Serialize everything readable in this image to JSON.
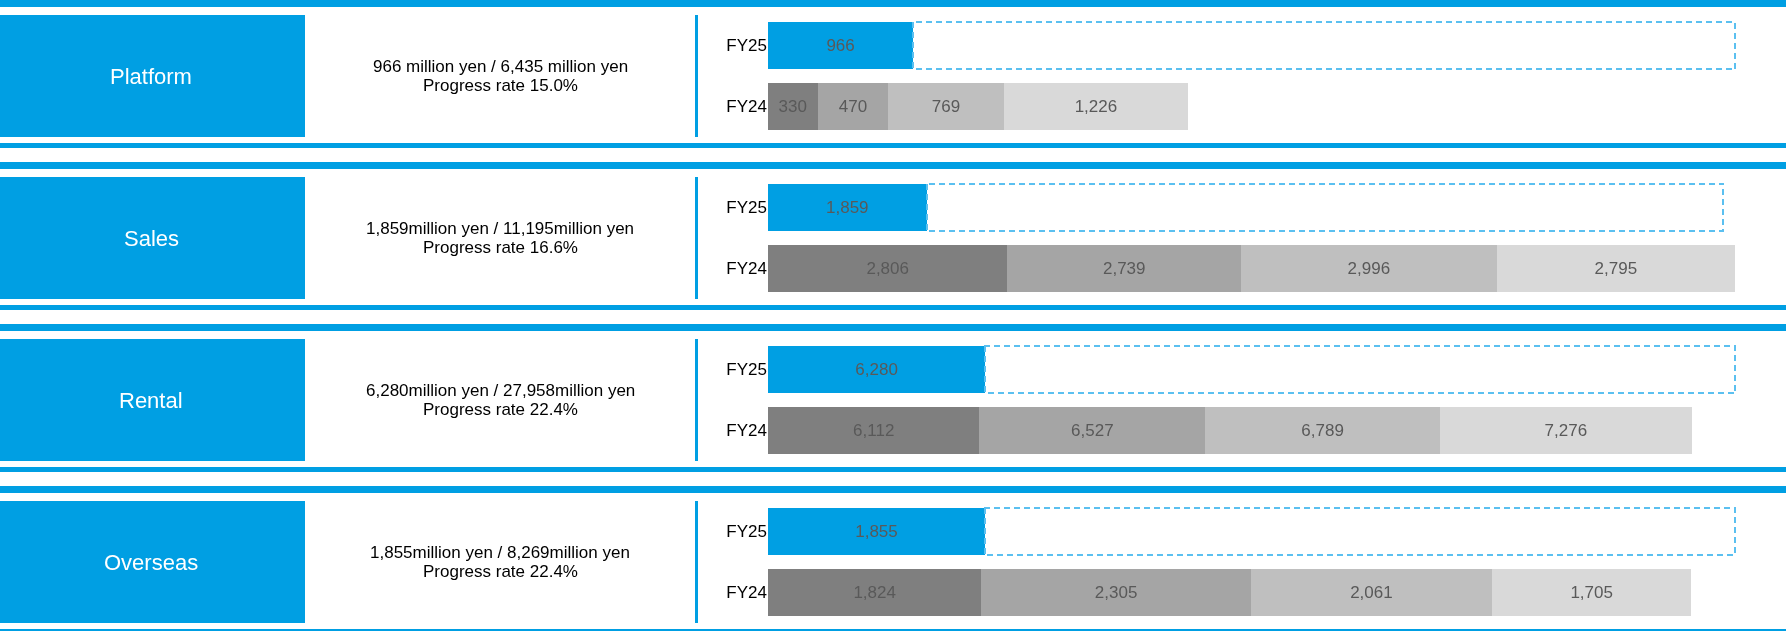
{
  "chart_data": [
    {
      "type": "bar",
      "orientation": "horizontal",
      "stacked": true,
      "legend": false,
      "grid": false,
      "tick_labels": "y",
      "ylabel": "Platform",
      "subtitle": "966 million yen / 6,435 million yen",
      "annotations": [
        "Progress rate 15.0%"
      ],
      "categories": [
        "FY25",
        "FY24"
      ],
      "series": [
        {
          "colors": [
            "#009fe3",
            "#7f7f7f"
          ],
          "values": [
            966,
            330
          ],
          "value_labels": [
            "966",
            "330"
          ]
        },
        {
          "color": "#a5a5a5",
          "values": [
            null,
            470
          ],
          "value_labels": [
            null,
            "470"
          ]
        },
        {
          "color": "#bfbfbf",
          "values": [
            null,
            769
          ],
          "value_labels": [
            null,
            "769"
          ]
        },
        {
          "color": "#d9d9d9",
          "values": [
            null,
            1226
          ],
          "value_labels": [
            null,
            "1,226"
          ]
        },
        {
          "color": "#5bc0f0",
          "line_style": "dashed",
          "values": [
            5469,
            null
          ],
          "value_labels": [
            null,
            null
          ]
        }
      ]
    },
    {
      "type": "bar",
      "orientation": "horizontal",
      "stacked": true,
      "legend": false,
      "grid": false,
      "tick_labels": "y",
      "ylabel": "Sales",
      "subtitle": "1,859million yen / 11,195million yen",
      "annotations": [
        "Progress rate 16.6%"
      ],
      "categories": [
        "FY25",
        "FY24"
      ],
      "series": [
        {
          "colors": [
            "#009fe3",
            "#7f7f7f"
          ],
          "values": [
            1859,
            2806
          ],
          "value_labels": [
            "1,859",
            "2,806"
          ]
        },
        {
          "color": "#a5a5a5",
          "values": [
            null,
            2739
          ],
          "value_labels": [
            null,
            "2,739"
          ]
        },
        {
          "color": "#bfbfbf",
          "values": [
            null,
            2996
          ],
          "value_labels": [
            null,
            "2,996"
          ]
        },
        {
          "color": "#d9d9d9",
          "values": [
            null,
            2795
          ],
          "value_labels": [
            null,
            "2,795"
          ]
        },
        {
          "color": "#5bc0f0",
          "line_style": "dashed",
          "values": [
            9336,
            null
          ],
          "value_labels": [
            null,
            null
          ]
        }
      ]
    },
    {
      "type": "bar",
      "orientation": "horizontal",
      "stacked": true,
      "legend": false,
      "grid": false,
      "tick_labels": "y",
      "ylabel": "Rental",
      "subtitle": "6,280million yen / 27,958million yen",
      "annotations": [
        "Progress rate 22.4%"
      ],
      "categories": [
        "FY25",
        "FY24"
      ],
      "series": [
        {
          "colors": [
            "#009fe3",
            "#7f7f7f"
          ],
          "values": [
            6280,
            6112
          ],
          "value_labels": [
            "6,280",
            "6,112"
          ]
        },
        {
          "color": "#a5a5a5",
          "values": [
            null,
            6527
          ],
          "value_labels": [
            null,
            "6,527"
          ]
        },
        {
          "color": "#bfbfbf",
          "values": [
            null,
            6789
          ],
          "value_labels": [
            null,
            "6,789"
          ]
        },
        {
          "color": "#d9d9d9",
          "values": [
            null,
            7276
          ],
          "value_labels": [
            null,
            "7,276"
          ]
        },
        {
          "color": "#5bc0f0",
          "line_style": "dashed",
          "values": [
            21678,
            null
          ],
          "value_labels": [
            null,
            null
          ]
        }
      ]
    },
    {
      "type": "bar",
      "orientation": "horizontal",
      "stacked": true,
      "legend": false,
      "grid": false,
      "tick_labels": "y",
      "ylabel": "Overseas",
      "subtitle": "1,855million yen / 8,269million yen",
      "annotations": [
        "Progress rate 22.4%"
      ],
      "categories": [
        "FY25",
        "FY24"
      ],
      "series": [
        {
          "colors": [
            "#009fe3",
            "#7f7f7f"
          ],
          "values": [
            1855,
            1824
          ],
          "value_labels": [
            "1,855",
            "1,824"
          ]
        },
        {
          "color": "#a5a5a5",
          "values": [
            null,
            2305
          ],
          "value_labels": [
            null,
            "2,305"
          ]
        },
        {
          "color": "#bfbfbf",
          "values": [
            null,
            2061
          ],
          "value_labels": [
            null,
            "2,061"
          ]
        },
        {
          "color": "#d9d9d9",
          "values": [
            null,
            1705
          ],
          "value_labels": [
            null,
            "1,705"
          ]
        },
        {
          "color": "#5bc0f0",
          "line_style": "dashed",
          "values": [
            6414,
            null
          ],
          "value_labels": [
            null,
            null
          ]
        }
      ]
    }
  ]
}
